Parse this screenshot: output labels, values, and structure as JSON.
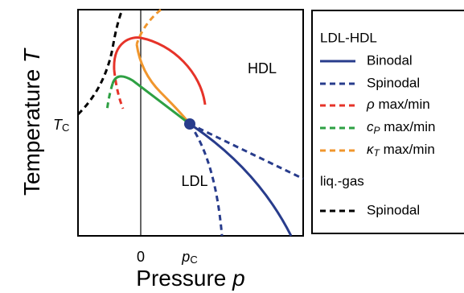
{
  "y_axis": {
    "label": "Temperature",
    "symbol": "T"
  },
  "x_axis": {
    "label": "Pressure",
    "symbol": "p"
  },
  "y_ticks": [
    {
      "symbol": "T",
      "subscript": "C"
    }
  ],
  "x_ticks": [
    "0",
    {
      "symbol": "p",
      "subscript": "C"
    }
  ],
  "regions": [
    "HDL",
    "LDL"
  ],
  "legend": {
    "groups": [
      {
        "title": "LDL-HDL",
        "entries": [
          {
            "label": "Binodal"
          },
          {
            "label": "Spinodal"
          },
          {
            "symbol": "ρ",
            "label": " max/min"
          },
          {
            "symbol": "c",
            "subscript": "P",
            "label": " max/min"
          },
          {
            "symbol": "κ",
            "subscript": "T",
            "label": " max/min"
          }
        ]
      },
      {
        "title": "liq.-gas",
        "entries": [
          {
            "label": "Spinodal"
          }
        ]
      }
    ]
  }
}
